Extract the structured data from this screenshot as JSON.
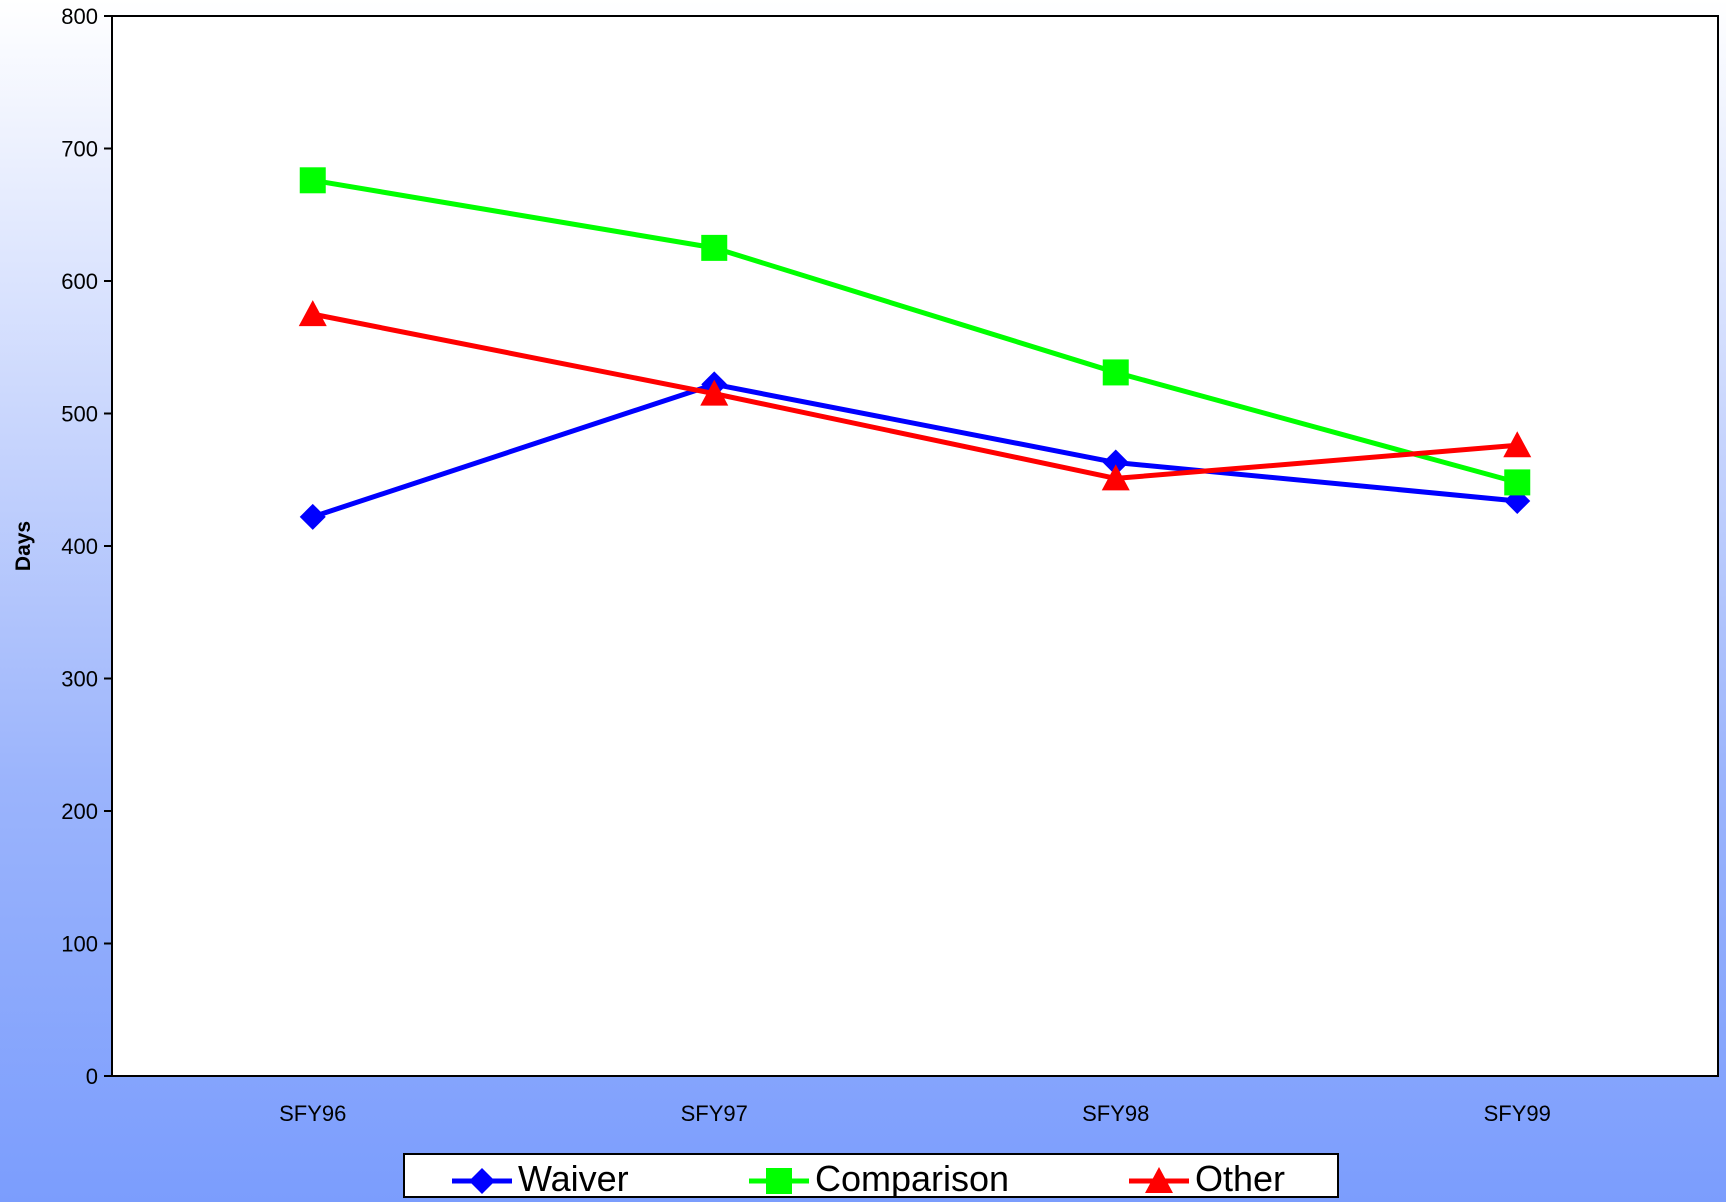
{
  "chart_data": {
    "type": "line",
    "title": "",
    "xlabel": "",
    "ylabel": "Days",
    "ylim": [
      0,
      800
    ],
    "yticks": [
      0,
      100,
      200,
      300,
      400,
      500,
      600,
      700,
      800
    ],
    "categories": [
      "SFY96",
      "SFY97",
      "SFY98",
      "SFY99"
    ],
    "grid": false,
    "legend_position": "bottom",
    "series": [
      {
        "name": "Waiver",
        "color": "#0000ff",
        "marker": "diamond",
        "values": [
          422,
          522,
          463,
          434
        ]
      },
      {
        "name": "Comparison",
        "color": "#00ff00",
        "marker": "square",
        "values": [
          676,
          625,
          531,
          448
        ]
      },
      {
        "name": "Other",
        "color": "#ff0000",
        "marker": "triangle",
        "values": [
          575,
          515,
          451,
          476
        ]
      }
    ]
  }
}
